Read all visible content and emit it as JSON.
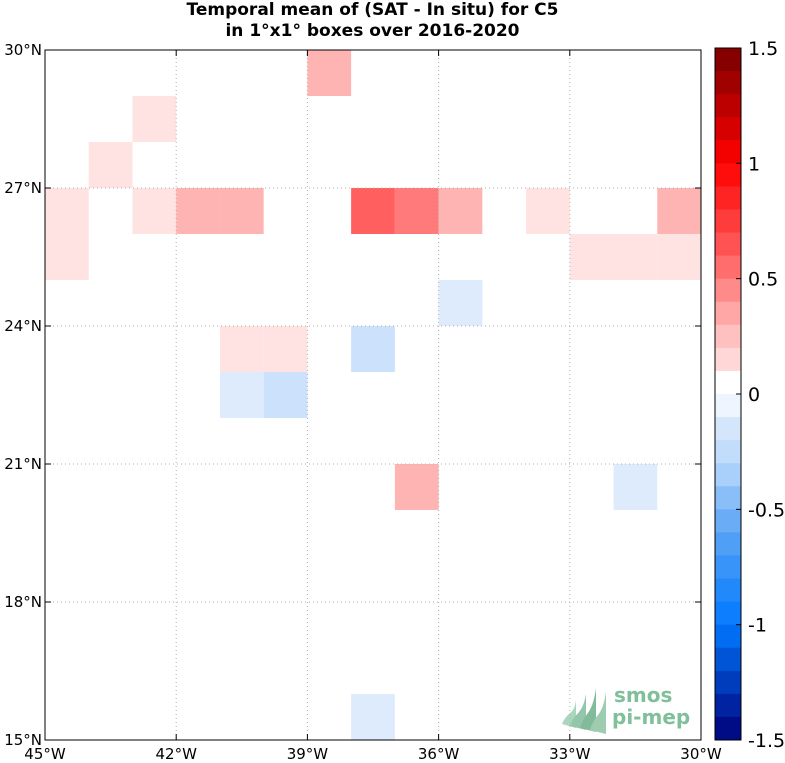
{
  "title_line1": "Temporal mean of (SAT - In situ) for C5",
  "title_line2": "in 1°x1° boxes over 2016-2020",
  "map": {
    "lon_range": [
      -45,
      -30
    ],
    "lat_range": [
      15,
      30
    ],
    "x_ticks": [
      {
        "lon": -45,
        "label": "45°W"
      },
      {
        "lon": -42,
        "label": "42°W"
      },
      {
        "lon": -39,
        "label": "39°W"
      },
      {
        "lon": -36,
        "label": "36°W"
      },
      {
        "lon": -33,
        "label": "33°W"
      },
      {
        "lon": -30,
        "label": "30°W"
      }
    ],
    "y_ticks": [
      {
        "lat": 30,
        "label": "30°N"
      },
      {
        "lat": 27,
        "label": "27°N"
      },
      {
        "lat": 24,
        "label": "24°N"
      },
      {
        "lat": 21,
        "label": "21°N"
      },
      {
        "lat": 18,
        "label": "18°N"
      },
      {
        "lat": 15,
        "label": "15°N"
      }
    ],
    "grid": "dotted",
    "cells": [
      {
        "lon": -39,
        "lat": 29,
        "value": 0.3
      },
      {
        "lon": -43,
        "lat": 28,
        "value": 0.1
      },
      {
        "lon": -44,
        "lat": 27,
        "value": 0.1
      },
      {
        "lon": -45,
        "lat": 26,
        "value": 0.1
      },
      {
        "lon": -45,
        "lat": 25,
        "value": 0.1
      },
      {
        "lon": -43,
        "lat": 26,
        "value": 0.1
      },
      {
        "lon": -42,
        "lat": 26,
        "value": 0.3
      },
      {
        "lon": -41,
        "lat": 26,
        "value": 0.3
      },
      {
        "lon": -38,
        "lat": 26,
        "value": 0.6
      },
      {
        "lon": -37,
        "lat": 26,
        "value": 0.5
      },
      {
        "lon": -36,
        "lat": 26,
        "value": 0.3
      },
      {
        "lon": -34,
        "lat": 26,
        "value": 0.1
      },
      {
        "lon": -31,
        "lat": 26,
        "value": 0.3
      },
      {
        "lon": -33,
        "lat": 25,
        "value": 0.1
      },
      {
        "lon": -32,
        "lat": 25,
        "value": 0.1
      },
      {
        "lon": -31,
        "lat": 25,
        "value": 0.1
      },
      {
        "lon": -36,
        "lat": 24,
        "value": -0.1
      },
      {
        "lon": -41,
        "lat": 23,
        "value": 0.1
      },
      {
        "lon": -40,
        "lat": 23,
        "value": 0.1
      },
      {
        "lon": -38,
        "lat": 23,
        "value": -0.2
      },
      {
        "lon": -41,
        "lat": 22,
        "value": -0.1
      },
      {
        "lon": -40,
        "lat": 22,
        "value": -0.2
      },
      {
        "lon": -37,
        "lat": 20,
        "value": 0.3
      },
      {
        "lon": -32,
        "lat": 20,
        "value": -0.1
      },
      {
        "lon": -38,
        "lat": 15,
        "value": -0.1
      }
    ]
  },
  "colorbar": {
    "min": -1.5,
    "max": 1.5,
    "step": 0.1,
    "tick_labels": [
      "1.5",
      "1",
      "0.5",
      "0",
      "-0.5",
      "-1",
      "-1.5"
    ],
    "tick_values": [
      1.5,
      1,
      0.5,
      0,
      -0.5,
      -1,
      -1.5
    ]
  },
  "logo": {
    "line1": "smos",
    "line2": "pi-mep"
  }
}
